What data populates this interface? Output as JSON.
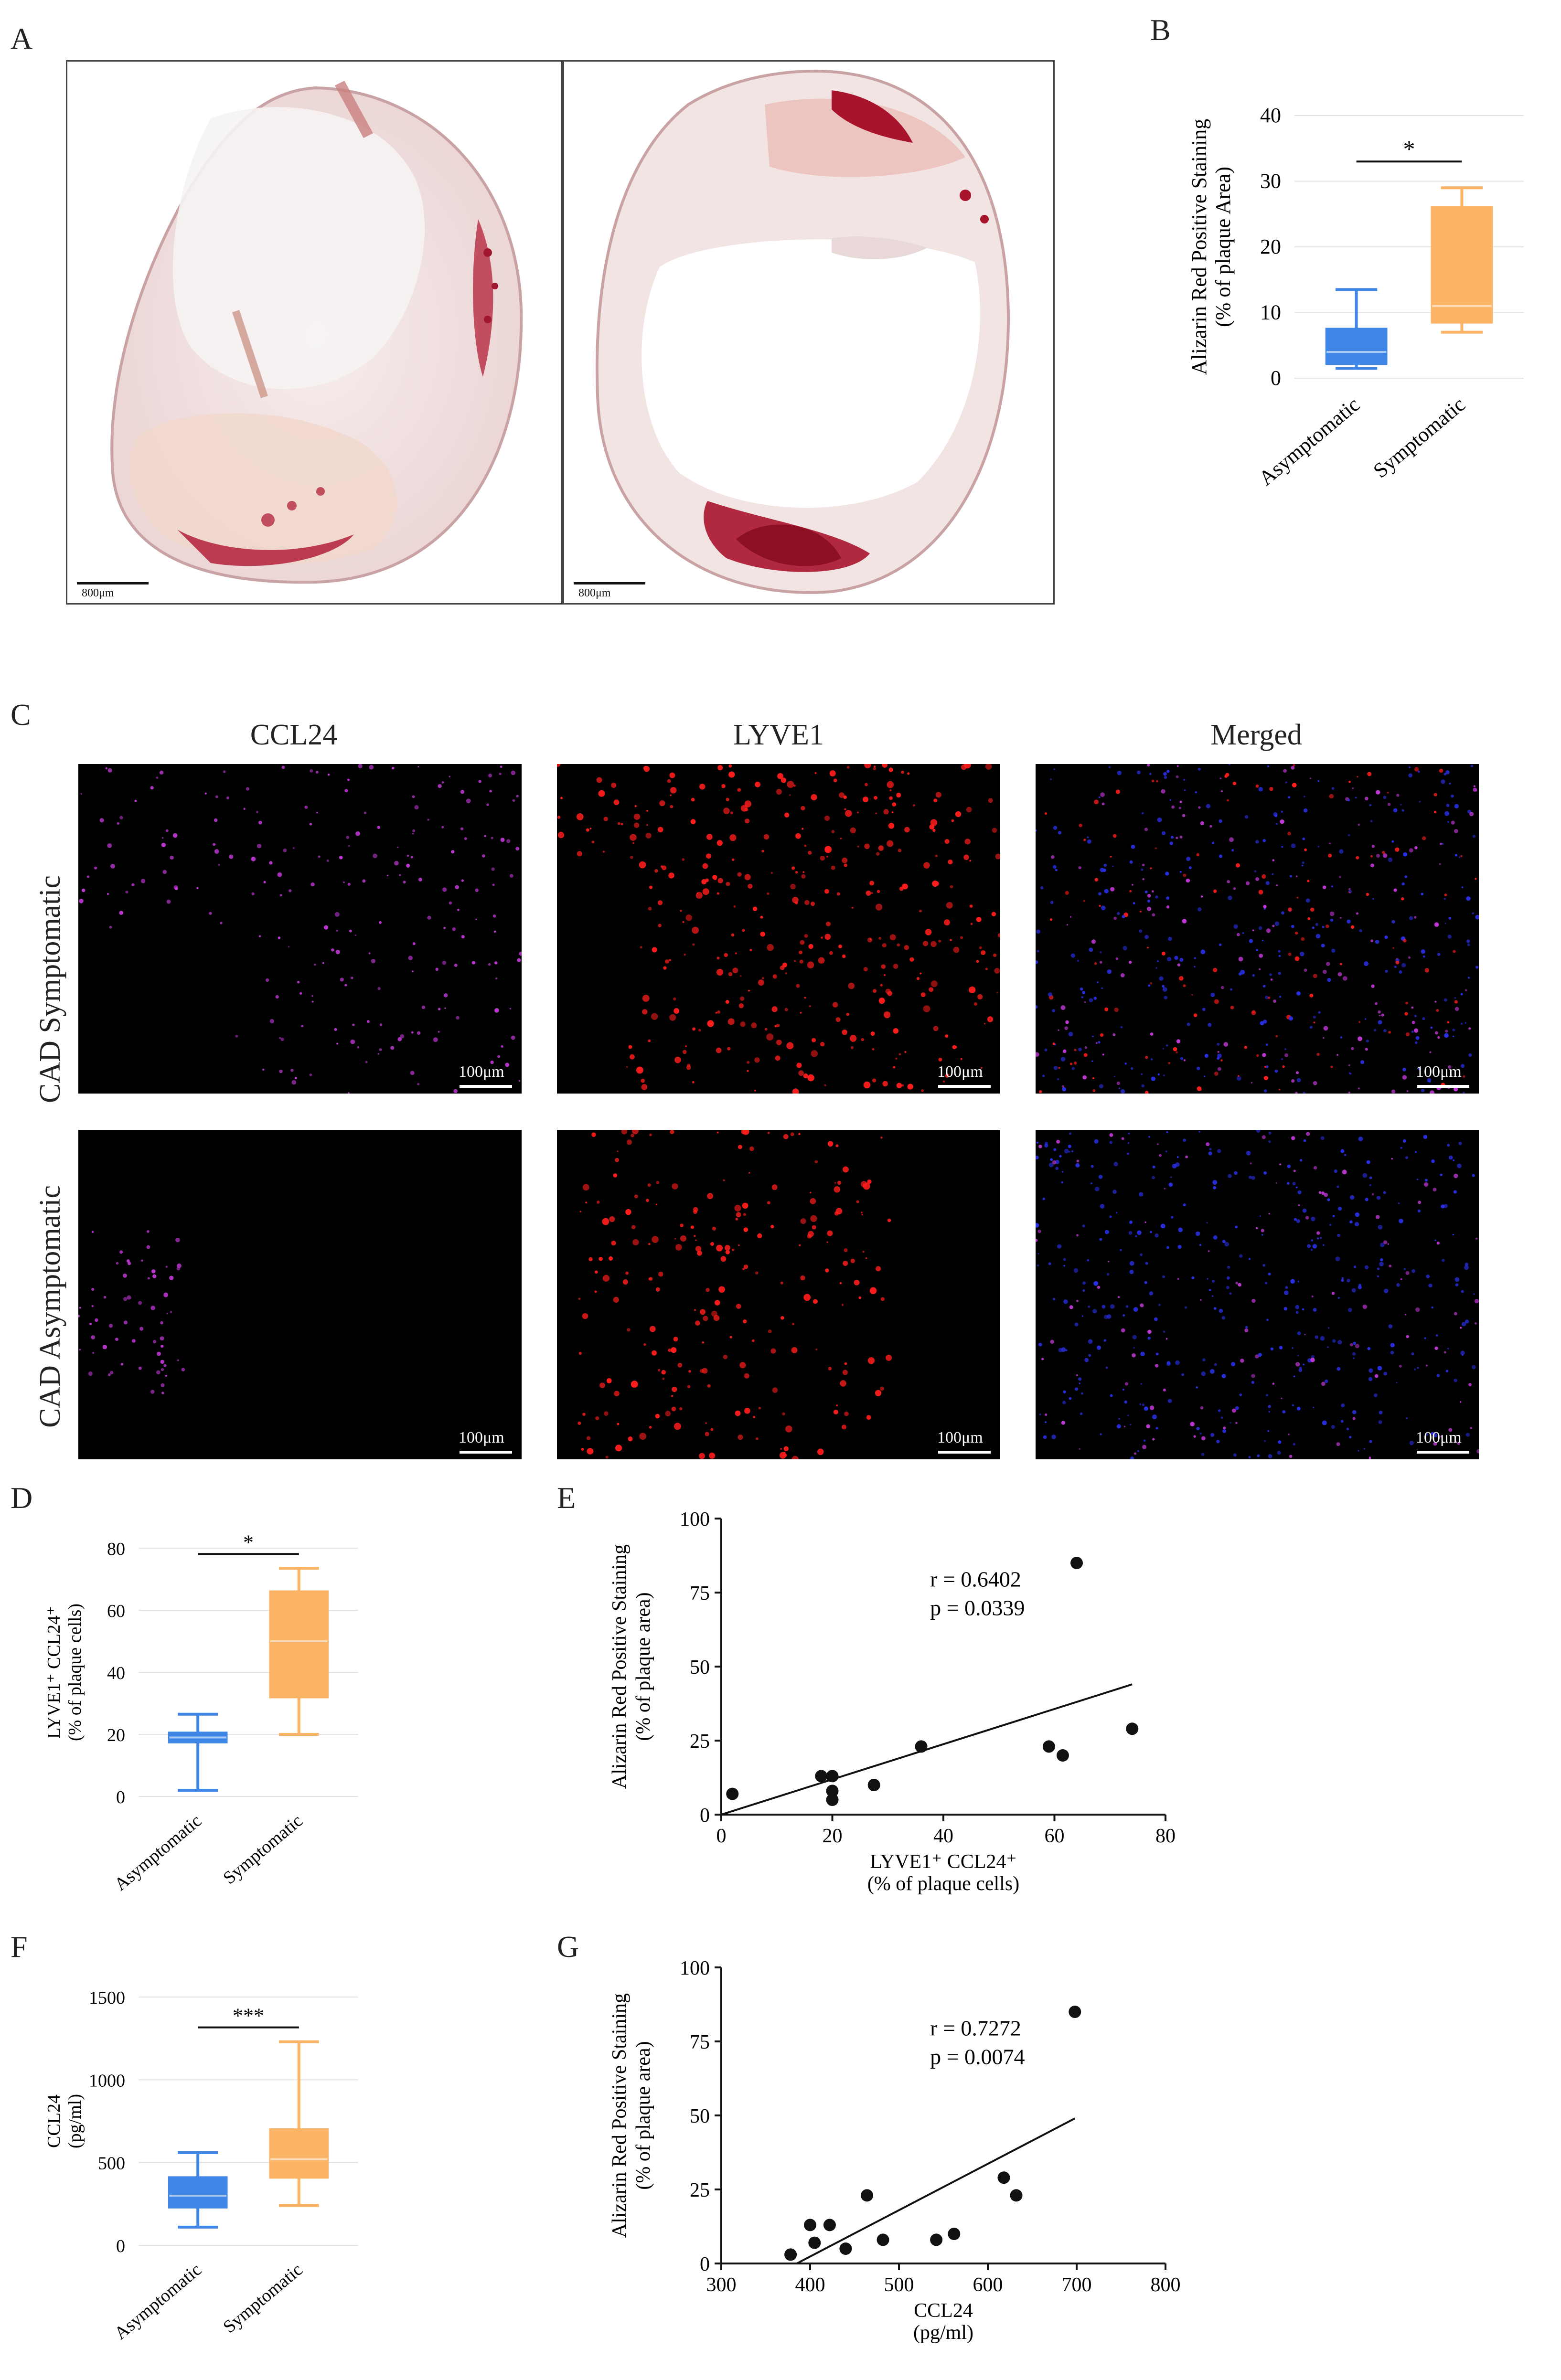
{
  "panels": {
    "A": "A",
    "B": "B",
    "C": "C",
    "D": "D",
    "E": "E",
    "F": "F",
    "G": "G"
  },
  "histology": {
    "scale_left": "800μm",
    "scale_right": "800μm"
  },
  "fluor": {
    "col_ccl24": "CCL24",
    "col_lyve1": "LYVE1",
    "col_merged": "Merged",
    "row_symptomatic": "CAD Symptomatic",
    "row_asymptomatic": "CAD Asymptomatic",
    "scale": "100μm"
  },
  "colors": {
    "asymptomatic": "#3f86e6",
    "symptomatic": "#fbb466",
    "magenta": "#c238d8",
    "red": "#ff1d1d",
    "blue": "#2a30e8"
  },
  "chart_data": [
    {
      "id": "B",
      "type": "box",
      "ylabel": "Alizarin Red Positive Staining",
      "ylabel2": "(% of plaque Area)",
      "ylim": [
        0,
        40
      ],
      "yticks": [
        0,
        10,
        20,
        30,
        40
      ],
      "grid": true,
      "categories": [
        "Asymptomatic",
        "Symptomatic"
      ],
      "boxes": [
        {
          "name": "Asymptomatic",
          "min": 1.5,
          "q1": 2.2,
          "median": 4,
          "q3": 7.5,
          "max": 13.5
        },
        {
          "name": "Symptomatic",
          "min": 7,
          "q1": 8.5,
          "median": 11,
          "q3": 26,
          "max": 29
        }
      ],
      "significance": "*"
    },
    {
      "id": "D",
      "type": "box",
      "ylabel": "LYVE1⁺ CCL24⁺",
      "ylabel2": "(% of plaque cells)",
      "ylim": [
        0,
        80
      ],
      "yticks": [
        0,
        20,
        40,
        60,
        80
      ],
      "grid": true,
      "categories": [
        "Asymptomatic",
        "Symptomatic"
      ],
      "boxes": [
        {
          "name": "Asymptomatic",
          "min": 2,
          "q1": 17.5,
          "median": 19,
          "q3": 20.5,
          "max": 26.5
        },
        {
          "name": "Symptomatic",
          "min": 20,
          "q1": 32,
          "median": 50,
          "q3": 66,
          "max": 73.5
        }
      ],
      "significance": "*"
    },
    {
      "id": "E",
      "type": "scatter",
      "ylabel": "Alizarin Red Positive Staining",
      "ylabel2": "(% of plaque area)",
      "xlabel": "LYVE1⁺ CCL24⁺",
      "xlabel2": "(% of plaque cells)",
      "xlim": [
        0,
        80
      ],
      "ylim": [
        0,
        100
      ],
      "xticks": [
        0,
        20,
        40,
        60,
        80
      ],
      "yticks": [
        0,
        25,
        50,
        75,
        100
      ],
      "x": [
        2,
        18,
        20,
        20,
        20,
        27.5,
        36,
        59,
        61.5,
        64,
        74
      ],
      "y": [
        7,
        13,
        13,
        8,
        5,
        10,
        23,
        23,
        20,
        85,
        29
      ],
      "fit": {
        "x": [
          0,
          74
        ],
        "y": [
          0,
          44
        ]
      },
      "stat_r": "r = 0.6402",
      "stat_p": "p = 0.0339"
    },
    {
      "id": "F",
      "type": "box",
      "ylabel": "CCL24",
      "ylabel2": "(pg/ml)",
      "ylim": [
        0,
        1500
      ],
      "yticks": [
        0,
        500,
        1000,
        1500
      ],
      "grid": true,
      "categories": [
        "Asymptomatic",
        "Symptomatic"
      ],
      "boxes": [
        {
          "name": "Asymptomatic",
          "min": 110,
          "q1": 230,
          "median": 300,
          "q3": 410,
          "max": 560
        },
        {
          "name": "Symptomatic",
          "min": 240,
          "q1": 410,
          "median": 520,
          "q3": 700,
          "max": 1230
        }
      ],
      "significance": "***"
    },
    {
      "id": "G",
      "type": "scatter",
      "ylabel": "Alizarin Red Positive Staining",
      "ylabel2": "(% of plaque area)",
      "xlabel": "CCL24",
      "xlabel2": "(pg/ml)",
      "xlim": [
        300,
        800
      ],
      "ylim": [
        0,
        100
      ],
      "xticks": [
        300,
        400,
        500,
        600,
        700,
        800
      ],
      "yticks": [
        0,
        25,
        50,
        75,
        100
      ],
      "x": [
        378,
        400,
        405,
        422,
        440,
        464,
        482,
        542,
        562,
        618,
        632,
        698
      ],
      "y": [
        3,
        13,
        7,
        13,
        5,
        23,
        8,
        8,
        10,
        29,
        23,
        85
      ],
      "fit": {
        "x": [
          385,
          698
        ],
        "y": [
          0,
          49
        ]
      },
      "stat_r": "r = 0.7272",
      "stat_p": "p = 0.0074"
    }
  ]
}
